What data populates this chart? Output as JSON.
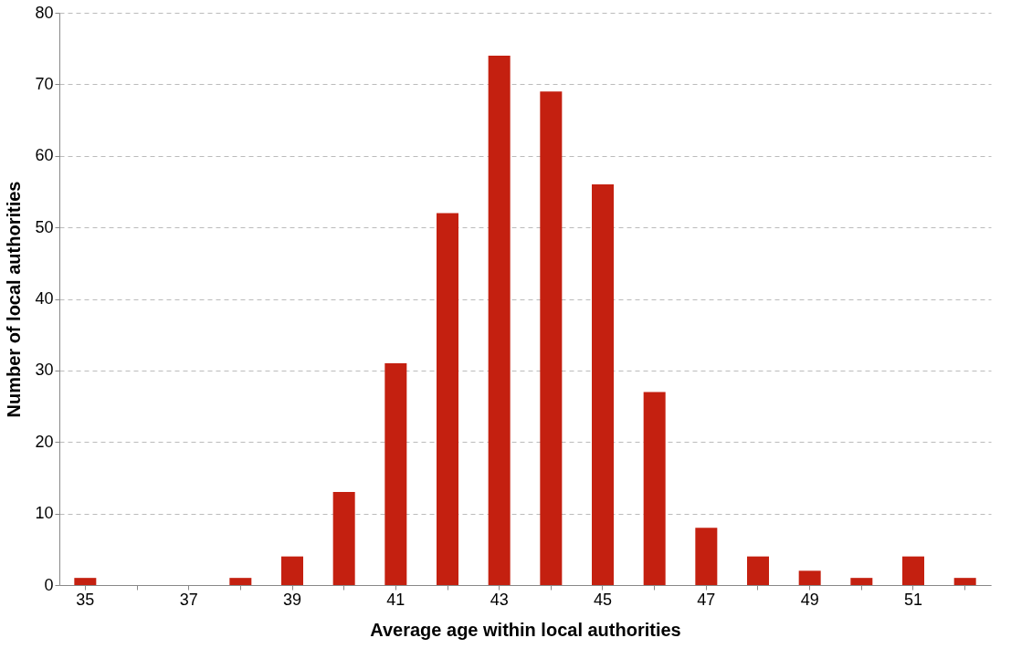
{
  "chart_data": {
    "type": "bar",
    "xlabel": "Average age within local authorities",
    "ylabel": "Number of local authorities",
    "categories": [
      "35",
      null,
      "37",
      null,
      "39",
      null,
      "41",
      null,
      "43",
      null,
      "45",
      null,
      "47",
      null,
      "49",
      null,
      "51",
      null
    ],
    "values": [
      1,
      0,
      0,
      1,
      4,
      13,
      31,
      52,
      74,
      69,
      56,
      27,
      8,
      4,
      2,
      1,
      4,
      1
    ],
    "color": "#c42010",
    "ylim": [
      0,
      80
    ],
    "yticks": [
      0,
      10,
      20,
      30,
      40,
      50,
      60,
      70,
      80
    ],
    "grid": "y"
  }
}
